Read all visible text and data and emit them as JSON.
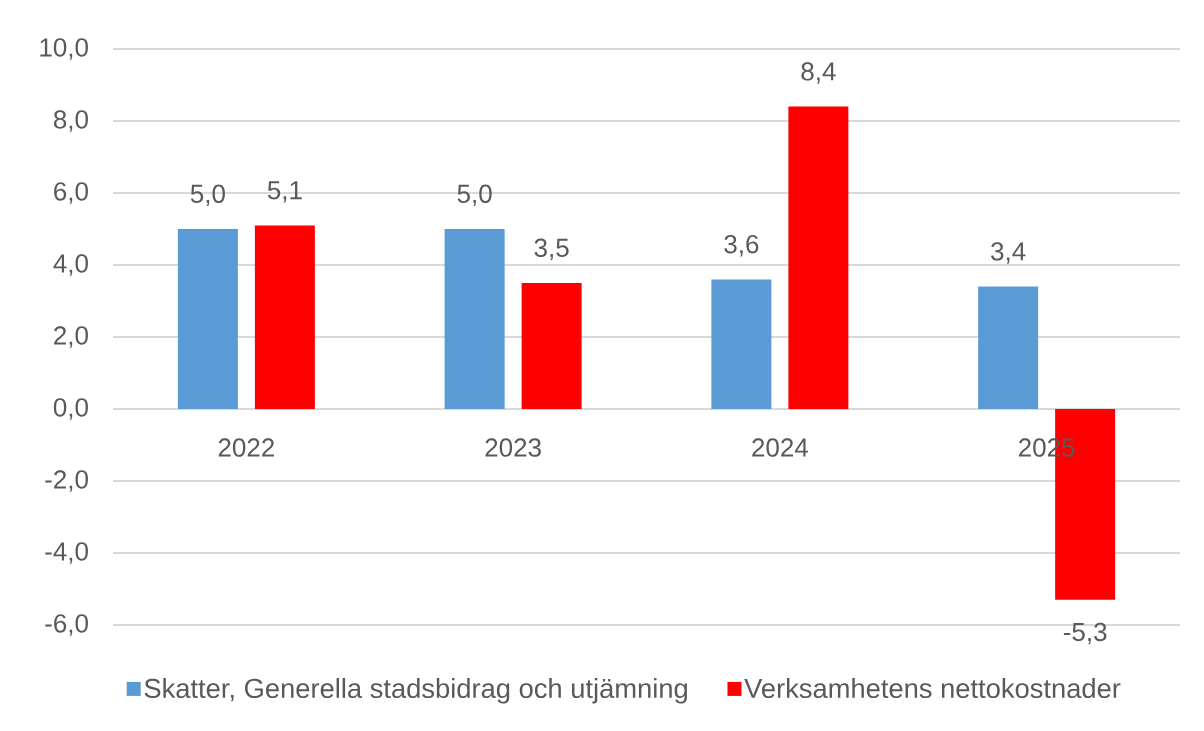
{
  "chart_data": {
    "type": "bar",
    "categories": [
      "2022",
      "2023",
      "2024",
      "2025"
    ],
    "series": [
      {
        "name": "Skatter, Generella stadsbidrag och utjämning",
        "color": "#5b9bd5",
        "values": [
          5.0,
          5.0,
          3.6,
          3.4
        ],
        "value_labels": [
          "5,0",
          "5,0",
          "3,6",
          "3,4"
        ]
      },
      {
        "name": "Verksamhetens nettokostnader",
        "color": "#ff0000",
        "values": [
          5.1,
          3.5,
          8.4,
          -5.3
        ],
        "value_labels": [
          "5,1",
          "3,5",
          "8,4",
          "-5,3"
        ]
      }
    ],
    "ylim": [
      -6,
      10
    ],
    "yticks": [
      {
        "value": -6,
        "label": "-6,0"
      },
      {
        "value": -4,
        "label": "-4,0"
      },
      {
        "value": -2,
        "label": "-2,0"
      },
      {
        "value": 0,
        "label": "0,0"
      },
      {
        "value": 2,
        "label": "2,0"
      },
      {
        "value": 4,
        "label": "4,0"
      },
      {
        "value": 6,
        "label": "6,0"
      },
      {
        "value": 8,
        "label": "8,0"
      },
      {
        "value": 10,
        "label": "10,0"
      }
    ],
    "grid": "y",
    "legend": "bottom"
  }
}
